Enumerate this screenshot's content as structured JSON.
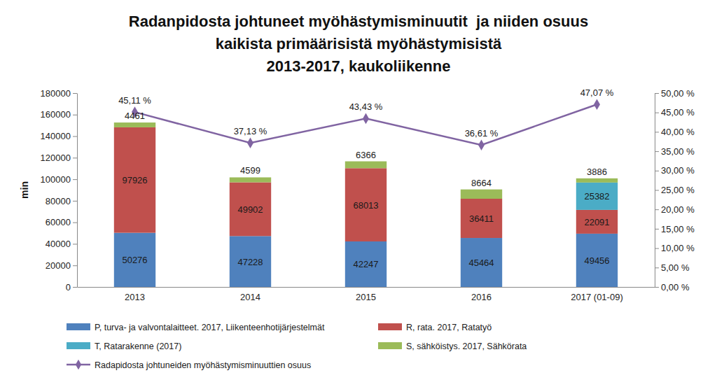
{
  "chart_data": {
    "type": "bar",
    "title": [
      "Radanpidosta johtuneet myöhästymisminuutit  ja niiden osuus",
      "kaikista primäärisistä myöhästymisistä",
      "2013-2017, kaukoliikenne"
    ],
    "y_label": "min",
    "categories": [
      "2013",
      "2014",
      "2015",
      "2016",
      "2017 (01-09)"
    ],
    "stacked": true,
    "data_labels": true,
    "grid": false,
    "legend": "bottom",
    "ylim": [
      0,
      180000
    ],
    "yticks": [
      0,
      20000,
      40000,
      60000,
      80000,
      100000,
      120000,
      140000,
      160000,
      180000
    ],
    "y2lim": [
      0,
      50
    ],
    "y2ticks": [
      {
        "value": 0,
        "label": "0,00 %"
      },
      {
        "value": 5,
        "label": "5,00 %"
      },
      {
        "value": 10,
        "label": "10,00 %"
      },
      {
        "value": 15,
        "label": "15,00 %"
      },
      {
        "value": 20,
        "label": "20,00 %"
      },
      {
        "value": 25,
        "label": "25,00 %"
      },
      {
        "value": 30,
        "label": "30,00 %"
      },
      {
        "value": 35,
        "label": "35,00 %"
      },
      {
        "value": 40,
        "label": "40,00 %"
      },
      {
        "value": 45,
        "label": "45,00 %"
      },
      {
        "value": 50,
        "label": "50,00 %"
      }
    ],
    "series": [
      {
        "name": "P, turva- ja valvontalaitteet. 2017, Liikenteenhotijärjestelmät",
        "type": "bar",
        "color": "#4f81bd",
        "values": [
          50276,
          47228,
          42247,
          45464,
          49456
        ]
      },
      {
        "name": "R, rata. 2017, Ratatyö",
        "type": "bar",
        "color": "#c0504d",
        "values": [
          97926,
          49902,
          68013,
          36411,
          22091
        ]
      },
      {
        "name": "T, Ratarakenne (2017)",
        "type": "bar",
        "color": "#4bacc6",
        "values": [
          null,
          null,
          null,
          null,
          25382
        ]
      },
      {
        "name": "S, sähköistys. 2017, Sähkörata",
        "type": "bar",
        "color": "#9bbb59",
        "values": [
          4461,
          4599,
          6366,
          8664,
          3886
        ]
      },
      {
        "name": "Radapidosta johtuneiden myöhästymisminuuttien osuus",
        "type": "line",
        "axis": "y2",
        "color": "#8064a2",
        "marker": "diamond",
        "values": [
          45.11,
          37.13,
          43.43,
          36.61,
          47.07
        ],
        "value_labels": [
          "45,11 %",
          "37,13 %",
          "43,43 %",
          "36,61 %",
          "47,07 %"
        ]
      }
    ]
  }
}
